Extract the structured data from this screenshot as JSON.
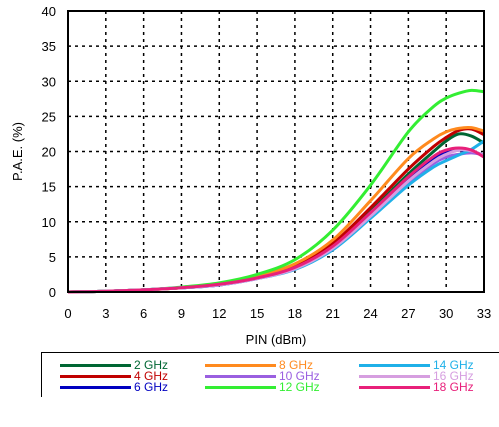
{
  "chart_data": {
    "type": "line",
    "title": "",
    "xlabel": "PIN (dBm)",
    "ylabel": "P.A.E. (%)",
    "xlim": [
      0,
      33
    ],
    "ylim": [
      0,
      40
    ],
    "xticks": [
      "0",
      "3",
      "6",
      "9",
      "12",
      "15",
      "18",
      "21",
      "24",
      "27",
      "30",
      "33"
    ],
    "yticks": [
      "0",
      "5",
      "10",
      "15",
      "20",
      "25",
      "30",
      "35",
      "40"
    ],
    "grid": true,
    "legend_position": "bottom",
    "x": [
      0,
      3,
      6,
      9,
      12,
      15,
      18,
      21,
      24,
      27,
      29,
      30,
      31,
      32,
      33
    ],
    "series": [
      {
        "name": "2 GHz",
        "color": "#006633",
        "values": [
          0,
          0.1,
          0.3,
          0.6,
          1.1,
          2.1,
          3.6,
          6.6,
          11.5,
          16.8,
          20.0,
          21.5,
          22.5,
          22.2,
          21.2
        ]
      },
      {
        "name": "4 GHz",
        "color": "#c00000",
        "values": [
          0,
          0.1,
          0.3,
          0.6,
          1.1,
          2.1,
          3.7,
          6.9,
          12.0,
          17.5,
          20.7,
          22.0,
          23.0,
          23.2,
          22.4
        ]
      },
      {
        "name": "6 GHz",
        "color": "#0000c0",
        "values": [
          0,
          0.1,
          0.3,
          0.6,
          1.0,
          2.0,
          3.4,
          6.3,
          11.0,
          16.0,
          19.0,
          19.9,
          20.2,
          20.0,
          19.5
        ]
      },
      {
        "name": "8 GHz",
        "color": "#ff8a1e",
        "values": [
          0,
          0.1,
          0.3,
          0.6,
          1.2,
          2.3,
          4.0,
          7.4,
          13.0,
          19.0,
          21.8,
          22.8,
          23.3,
          23.4,
          22.9
        ]
      },
      {
        "name": "10 GHz",
        "color": "#9a5fe0",
        "values": [
          0,
          0.1,
          0.3,
          0.6,
          1.0,
          1.9,
          3.3,
          6.2,
          10.8,
          15.6,
          18.3,
          19.2,
          19.6,
          19.8,
          19.5
        ]
      },
      {
        "name": "12 GHz",
        "color": "#33ee33",
        "values": [
          0,
          0.1,
          0.3,
          0.7,
          1.3,
          2.5,
          4.6,
          8.8,
          15.2,
          22.8,
          26.4,
          27.6,
          28.3,
          28.7,
          28.5
        ]
      },
      {
        "name": "14 GHz",
        "color": "#1fb0e8",
        "values": [
          0,
          0.1,
          0.3,
          0.6,
          1.0,
          1.9,
          3.2,
          6.0,
          10.5,
          15.2,
          17.8,
          18.7,
          19.5,
          20.3,
          21.5
        ]
      },
      {
        "name": "16 GHz",
        "color": "#d69ee0",
        "values": [
          0,
          0.1,
          0.3,
          0.6,
          1.0,
          1.9,
          3.3,
          6.2,
          10.8,
          15.8,
          18.6,
          19.6,
          20.2,
          20.1,
          19.4
        ]
      },
      {
        "name": "18 GHz",
        "color": "#e8207a",
        "values": [
          0,
          0.1,
          0.3,
          0.6,
          1.1,
          2.0,
          3.5,
          6.5,
          11.3,
          16.4,
          19.3,
          20.2,
          20.5,
          20.2,
          19.2
        ]
      }
    ]
  }
}
